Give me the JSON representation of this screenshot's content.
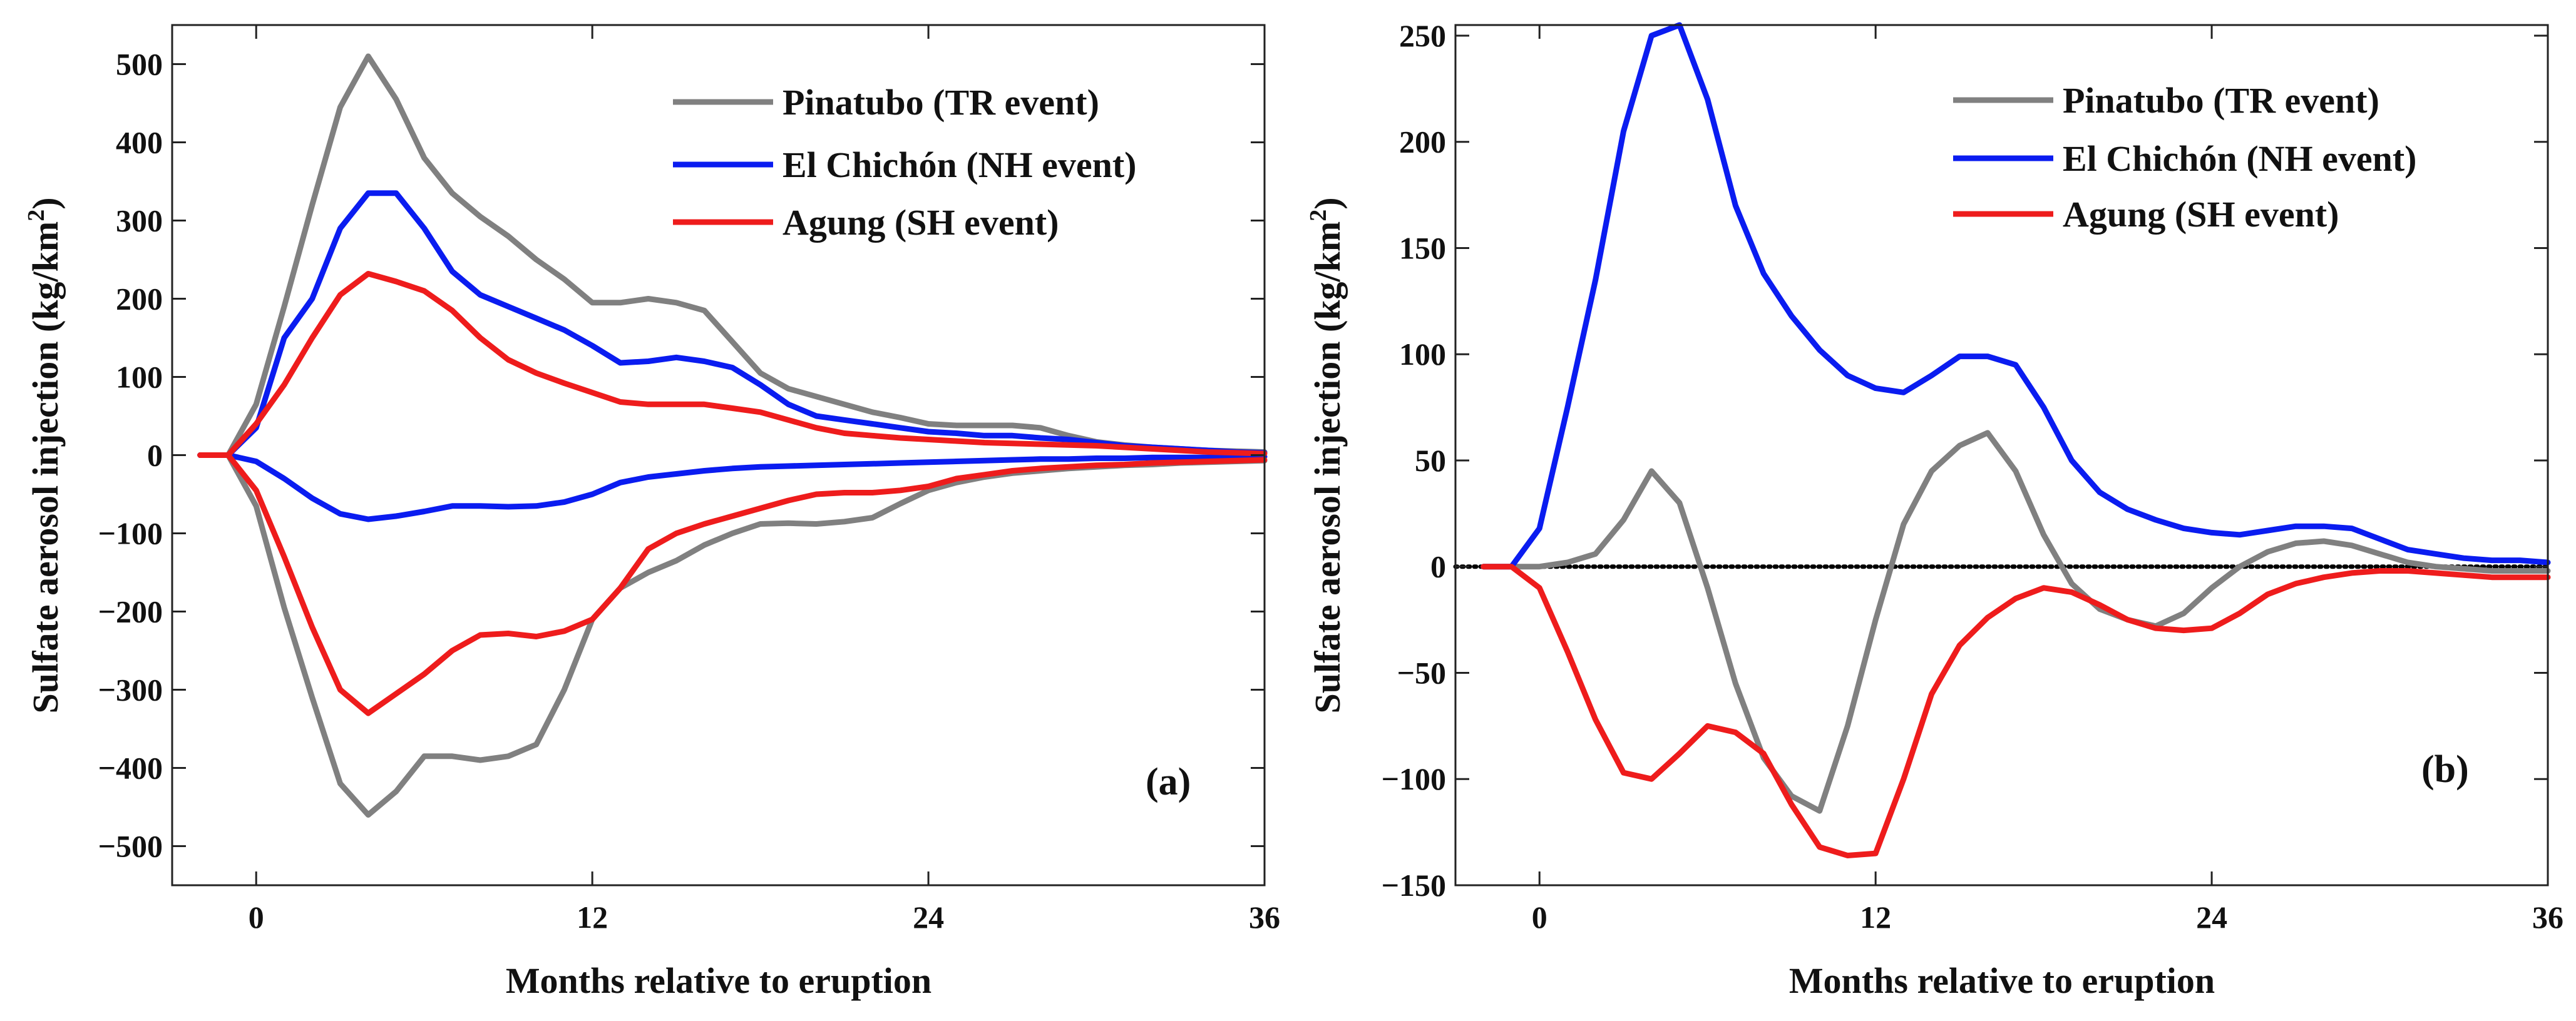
{
  "chart_data": [
    {
      "type": "line",
      "panel_label": "(a)",
      "xlabel": "Months relative to eruption",
      "ylabel_main": "Sulfate aerosol injection (kg/km",
      "ylabel_sup": "2",
      "ylabel_end": ")",
      "xlim": [
        -3,
        36
      ],
      "ylim": [
        -550,
        550
      ],
      "xticks": [
        0,
        12,
        24,
        36
      ],
      "yticks": [
        -500,
        -400,
        -300,
        -200,
        -100,
        0,
        100,
        200,
        300,
        400,
        500
      ],
      "zero_line": false,
      "legend_position": "top-right",
      "series": [
        {
          "name": "Pinatubo (TR event)",
          "color": "#808080",
          "x": [
            -2,
            -1,
            0,
            1,
            2,
            3,
            4,
            5,
            6,
            7,
            8,
            9,
            10,
            11,
            12,
            13,
            14,
            15,
            16,
            17,
            18,
            19,
            20,
            21,
            22,
            23,
            24,
            25,
            26,
            27,
            28,
            29,
            30,
            31,
            32,
            33,
            34,
            35,
            36
          ],
          "values": [
            0,
            0,
            65,
            190,
            320,
            445,
            510,
            455,
            380,
            335,
            305,
            280,
            250,
            225,
            195,
            195,
            200,
            195,
            185,
            145,
            105,
            85,
            75,
            65,
            55,
            48,
            40,
            38,
            38,
            38,
            35,
            25,
            17,
            13,
            10,
            8,
            6,
            5,
            4
          ]
        },
        {
          "name": "",
          "color": "#808080",
          "x": [
            -2,
            -1,
            0,
            1,
            2,
            3,
            4,
            5,
            6,
            7,
            8,
            9,
            10,
            11,
            12,
            13,
            14,
            15,
            16,
            17,
            18,
            19,
            20,
            21,
            22,
            23,
            24,
            25,
            26,
            27,
            28,
            29,
            30,
            31,
            32,
            33,
            34,
            35,
            36
          ],
          "values": [
            0,
            0,
            -65,
            -195,
            -310,
            -420,
            -460,
            -430,
            -385,
            -385,
            -390,
            -385,
            -370,
            -300,
            -210,
            -170,
            -150,
            -135,
            -115,
            -100,
            -88,
            -87,
            -88,
            -85,
            -80,
            -62,
            -45,
            -35,
            -28,
            -23,
            -20,
            -17,
            -15,
            -13,
            -12,
            -10,
            -9,
            -8,
            -7
          ]
        },
        {
          "name": "El Chichón (NH event)",
          "color": "#0a1cf0",
          "x": [
            -2,
            -1,
            0,
            1,
            2,
            3,
            4,
            5,
            6,
            7,
            8,
            9,
            10,
            11,
            12,
            13,
            14,
            15,
            16,
            17,
            18,
            19,
            20,
            21,
            22,
            23,
            24,
            25,
            26,
            27,
            28,
            29,
            30,
            31,
            32,
            33,
            34,
            35,
            36
          ],
          "values": [
            0,
            0,
            35,
            150,
            200,
            290,
            335,
            335,
            290,
            235,
            205,
            190,
            175,
            160,
            140,
            118,
            120,
            125,
            120,
            112,
            90,
            65,
            50,
            45,
            40,
            35,
            30,
            28,
            25,
            25,
            22,
            20,
            16,
            12,
            10,
            8,
            6,
            4,
            3
          ]
        },
        {
          "name": "",
          "color": "#0a1cf0",
          "x": [
            -2,
            -1,
            0,
            1,
            2,
            3,
            4,
            5,
            6,
            7,
            8,
            9,
            10,
            11,
            12,
            13,
            14,
            15,
            16,
            17,
            18,
            19,
            20,
            21,
            22,
            23,
            24,
            25,
            26,
            27,
            28,
            29,
            30,
            31,
            32,
            33,
            34,
            35,
            36
          ],
          "values": [
            0,
            0,
            -8,
            -30,
            -55,
            -75,
            -82,
            -78,
            -72,
            -65,
            -65,
            -66,
            -65,
            -60,
            -50,
            -35,
            -28,
            -24,
            -20,
            -17,
            -15,
            -14,
            -13,
            -12,
            -11,
            -10,
            -9,
            -8,
            -7,
            -6,
            -5,
            -5,
            -4,
            -4,
            -3,
            -3,
            -3,
            -2,
            -2
          ]
        },
        {
          "name": "Agung (SH event)",
          "color": "#ee1c1c",
          "x": [
            -2,
            -1,
            0,
            1,
            2,
            3,
            4,
            5,
            6,
            7,
            8,
            9,
            10,
            11,
            12,
            13,
            14,
            15,
            16,
            17,
            18,
            19,
            20,
            21,
            22,
            23,
            24,
            25,
            26,
            27,
            28,
            29,
            30,
            31,
            32,
            33,
            34,
            35,
            36
          ],
          "values": [
            0,
            0,
            40,
            90,
            150,
            205,
            232,
            222,
            210,
            185,
            150,
            122,
            105,
            92,
            80,
            68,
            65,
            65,
            65,
            60,
            55,
            45,
            35,
            28,
            25,
            22,
            20,
            18,
            16,
            15,
            14,
            13,
            12,
            10,
            8,
            6,
            4,
            3,
            2
          ]
        },
        {
          "name": "",
          "color": "#ee1c1c",
          "x": [
            -2,
            -1,
            0,
            1,
            2,
            3,
            4,
            5,
            6,
            7,
            8,
            9,
            10,
            11,
            12,
            13,
            14,
            15,
            16,
            17,
            18,
            19,
            20,
            21,
            22,
            23,
            24,
            25,
            26,
            27,
            28,
            29,
            30,
            31,
            32,
            33,
            34,
            35,
            36
          ],
          "values": [
            0,
            0,
            -45,
            -130,
            -220,
            -300,
            -330,
            -305,
            -280,
            -250,
            -230,
            -228,
            -232,
            -225,
            -210,
            -170,
            -120,
            -100,
            -88,
            -78,
            -68,
            -58,
            -50,
            -48,
            -48,
            -45,
            -40,
            -30,
            -25,
            -20,
            -17,
            -15,
            -13,
            -12,
            -10,
            -9,
            -8,
            -7,
            -6
          ]
        }
      ]
    },
    {
      "type": "line",
      "panel_label": "(b)",
      "xlabel": "Months relative to eruption",
      "ylabel_main": "Sulfate aerosol injection (kg/km",
      "ylabel_sup": "2",
      "ylabel_end": ")",
      "xlim": [
        -3,
        36
      ],
      "ylim": [
        -150,
        255
      ],
      "xticks": [
        0,
        12,
        24,
        36
      ],
      "yticks": [
        -150,
        -100,
        -50,
        0,
        50,
        100,
        150,
        200,
        250
      ],
      "zero_line": true,
      "legend_position": "top-right",
      "series": [
        {
          "name": "Pinatubo (TR event)",
          "color": "#808080",
          "x": [
            -2,
            -1,
            0,
            1,
            2,
            3,
            4,
            5,
            6,
            7,
            8,
            9,
            10,
            11,
            12,
            13,
            14,
            15,
            16,
            17,
            18,
            19,
            20,
            21,
            22,
            23,
            24,
            25,
            26,
            27,
            28,
            29,
            30,
            31,
            32,
            33,
            34,
            35,
            36
          ],
          "values": [
            0,
            0,
            0,
            2,
            6,
            22,
            45,
            30,
            -10,
            -55,
            -90,
            -108,
            -115,
            -75,
            -25,
            20,
            45,
            57,
            63,
            45,
            15,
            -8,
            -20,
            -25,
            -28,
            -22,
            -10,
            0,
            7,
            11,
            12,
            10,
            6,
            2,
            0,
            -1,
            -2,
            -2,
            -2
          ]
        },
        {
          "name": "El Chichón (NH event)",
          "color": "#0a1cf0",
          "x": [
            -2,
            -1,
            0,
            1,
            2,
            3,
            4,
            5,
            6,
            7,
            8,
            9,
            10,
            11,
            12,
            13,
            14,
            15,
            16,
            17,
            18,
            19,
            20,
            21,
            22,
            23,
            24,
            25,
            26,
            27,
            28,
            29,
            30,
            31,
            32,
            33,
            34,
            35,
            36
          ],
          "values": [
            0,
            0,
            18,
            75,
            135,
            205,
            250,
            255,
            220,
            170,
            138,
            118,
            102,
            90,
            84,
            82,
            90,
            99,
            99,
            95,
            75,
            50,
            35,
            27,
            22,
            18,
            16,
            15,
            17,
            19,
            19,
            18,
            13,
            8,
            6,
            4,
            3,
            3,
            2
          ]
        },
        {
          "name": "Agung (SH event)",
          "color": "#ee1c1c",
          "x": [
            -2,
            -1,
            0,
            1,
            2,
            3,
            4,
            5,
            6,
            7,
            8,
            9,
            10,
            11,
            12,
            13,
            14,
            15,
            16,
            17,
            18,
            19,
            20,
            21,
            22,
            23,
            24,
            25,
            26,
            27,
            28,
            29,
            30,
            31,
            32,
            33,
            34,
            35,
            36
          ],
          "values": [
            0,
            0,
            -10,
            -40,
            -72,
            -97,
            -100,
            -88,
            -75,
            -78,
            -88,
            -112,
            -132,
            -136,
            -135,
            -100,
            -60,
            -37,
            -24,
            -15,
            -10,
            -12,
            -18,
            -25,
            -29,
            -30,
            -29,
            -22,
            -13,
            -8,
            -5,
            -3,
            -2,
            -2,
            -3,
            -4,
            -5,
            -5,
            -5
          ]
        }
      ]
    }
  ]
}
